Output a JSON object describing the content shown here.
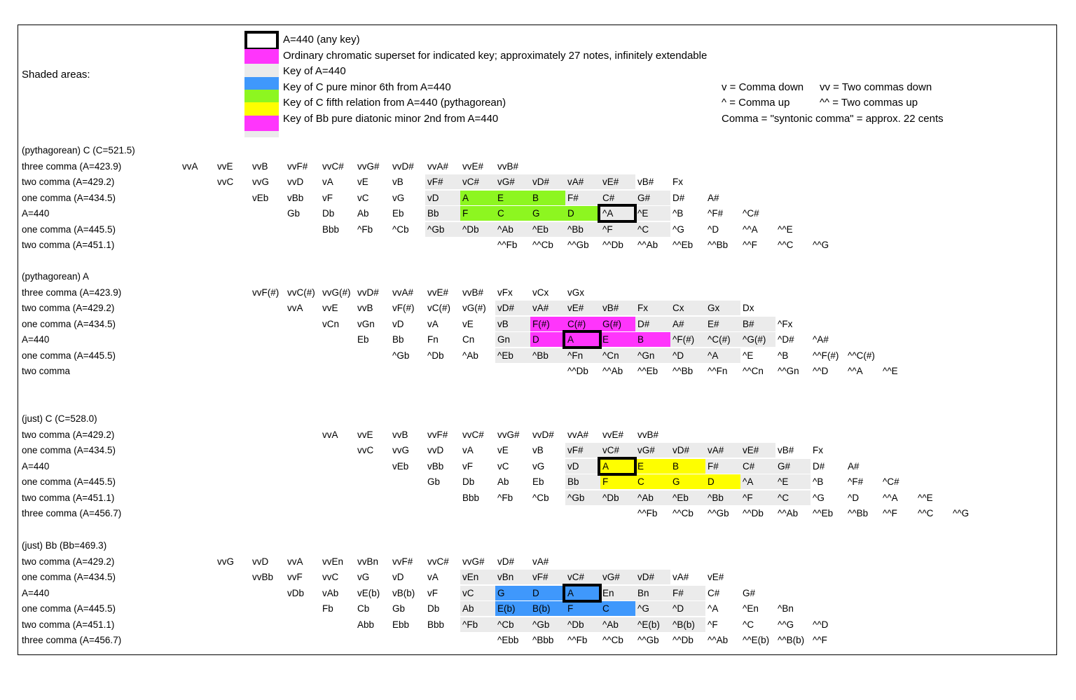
{
  "shaded_areas_label": "Shaded areas:",
  "hl_colors": {
    "g": "#ebebeb",
    "G": "#8df620",
    "M": "#ff35fc",
    "Y": "#fefe00",
    "B": "#3f98fc"
  },
  "legend": {
    "swatches": [
      {
        "name": "a440-any-key-swatch",
        "color": "#ffffff",
        "outlined": true
      },
      {
        "name": "chromatic-superset-swatch",
        "color": "#ff35fc"
      },
      {
        "name": "key-of-a440-swatch",
        "color": "#ebebeb"
      },
      {
        "name": "blue-key-swatch",
        "color": "#3f98fc"
      },
      {
        "name": "green-key-swatch",
        "color": "#8df620"
      },
      {
        "name": "yellow-key-swatch",
        "color": "#fefe00"
      },
      {
        "name": "magenta-key-swatch",
        "color": "#ff35fc"
      },
      {
        "name": "gray-tail-swatch",
        "color": "#ebebeb"
      }
    ],
    "lines": [
      "A=440 (any key)",
      "Ordinary chromatic superset for indicated key; approximately 27 notes, infinitely extendable",
      "Key of A=440",
      "Key of C pure minor 6th from A=440",
      "Key of C fifth relation from A=440 (pythagorean)",
      "Key of Bb pure diatonic minor 2nd from A=440"
    ],
    "notes": [
      {
        "left": "v = Comma down",
        "right": "vv = Two commas down"
      },
      {
        "left": "^ = Comma up",
        "right": "^^ = Two commas up"
      },
      {
        "left": "Comma = \"syntonic comma\" = approx. 22 cents",
        "right": ""
      }
    ]
  },
  "chart_data": {
    "type": "table",
    "description": "Comma-level pitch lattice; columns are fifth-chain positions, rows are syntonic comma offsets from A=440",
    "sections": [
      {
        "title": "(pythagorean) C (C=521.5)",
        "rows": [
          {
            "label": "three comma (A=423.9)",
            "start": 0,
            "cells": [
              "vvA",
              "vvE",
              "vvB",
              "vvF#",
              "vvC#",
              "vvG#",
              "vvD#",
              "vvA#",
              "vvE#",
              "vvB#"
            ]
          },
          {
            "label": "two comma (A=429.2)",
            "start": 1,
            "cells": [
              "vvC",
              "vvG",
              "vvD",
              "vA",
              "vE",
              "vB",
              [
                "vF#",
                "g"
              ],
              [
                "vC#",
                "g"
              ],
              [
                "vG#",
                "g"
              ],
              [
                "vD#",
                "g"
              ],
              [
                "vA#",
                "g"
              ],
              [
                "vE#",
                "g"
              ],
              "vB#",
              "Fx"
            ]
          },
          {
            "label": "one comma (A=434.5)",
            "start": 2,
            "cells": [
              "vEb",
              "vBb",
              "vF",
              "vC",
              "vG",
              [
                "vD",
                "g"
              ],
              [
                "A",
                "G"
              ],
              [
                "E",
                "G"
              ],
              [
                "B",
                "G"
              ],
              [
                "F#",
                "g"
              ],
              [
                "C#",
                "g"
              ],
              [
                "G#",
                "g"
              ],
              "D#",
              "A#"
            ]
          },
          {
            "label": "A=440",
            "start": 3,
            "cells": [
              "Gb",
              "Db",
              "Ab",
              "Eb",
              [
                "Bb",
                "g"
              ],
              [
                "F",
                "G"
              ],
              [
                "C",
                "G"
              ],
              [
                "G",
                "G"
              ],
              [
                "D",
                "G"
              ],
              [
                "^A",
                "g",
                1
              ],
              [
                "^E",
                "g"
              ],
              "^B",
              "^F#",
              "^C#"
            ]
          },
          {
            "label": "one comma (A=445.5)",
            "start": 4,
            "cells": [
              "Bbb",
              "^Fb",
              "^Cb",
              [
                "^Gb",
                "g"
              ],
              [
                "^Db",
                "g"
              ],
              [
                "^Ab",
                "g"
              ],
              [
                "^Eb",
                "g"
              ],
              [
                "^Bb",
                "g"
              ],
              [
                "^F",
                "g"
              ],
              [
                "^C",
                "g"
              ],
              "^G",
              "^D",
              "^^A",
              "^^E"
            ]
          },
          {
            "label": "two comma (A=451.1)",
            "start": 9,
            "cells": [
              "^^Fb",
              "^^Cb",
              "^^Gb",
              "^^Db",
              "^^Ab",
              "^^Eb",
              "^^Bb",
              "^^F",
              "^^C",
              "^^G"
            ]
          }
        ]
      },
      {
        "title": "(pythagorean) A",
        "rows": [
          {
            "label": "three comma (A=423.9)",
            "start": 2,
            "cells": [
              "vvF(#)",
              "vvC(#)",
              "vvG(#)",
              "vvD#",
              "vvA#",
              "vvE#",
              "vvB#",
              "vFx",
              "vCx",
              "vGx"
            ]
          },
          {
            "label": "two comma (A=429.2)",
            "start": 3,
            "cells": [
              "vvA",
              "vvE",
              "vvB",
              "vF(#)",
              "vC(#)",
              "vG(#)",
              [
                "vD#",
                "g"
              ],
              [
                "vA#",
                "g"
              ],
              [
                "vE#",
                "g"
              ],
              [
                "vB#",
                "g"
              ],
              [
                "Fx",
                "g"
              ],
              [
                "Cx",
                "g"
              ],
              [
                "Gx",
                "g"
              ],
              "Dx"
            ]
          },
          {
            "label": "one comma (A=434.5)",
            "start": 4,
            "cells": [
              "vCn",
              "vGn",
              "vD",
              "vA",
              "vE",
              [
                "vB",
                "g"
              ],
              [
                "F(#)",
                "M"
              ],
              [
                "C(#)",
                "M"
              ],
              [
                "G(#)",
                "M"
              ],
              [
                "D#",
                "g"
              ],
              [
                "A#",
                "g"
              ],
              [
                "E#",
                "g"
              ],
              [
                "B#",
                "g"
              ],
              "^Fx"
            ]
          },
          {
            "label": "A=440",
            "start": 5,
            "cells": [
              "Eb",
              "Bb",
              "Fn",
              "Cn",
              [
                "Gn",
                "g"
              ],
              [
                "D",
                "M"
              ],
              [
                "A",
                "M",
                1
              ],
              [
                "E",
                "M"
              ],
              [
                "B",
                "M"
              ],
              [
                "^F(#)",
                "g"
              ],
              [
                "^C(#)",
                "g"
              ],
              [
                "^G(#)",
                "g"
              ],
              "^D#",
              "^A#"
            ]
          },
          {
            "label": "one comma (A=445.5)",
            "start": 6,
            "cells": [
              "^Gb",
              "^Db",
              "^Ab",
              [
                "^Eb",
                "g"
              ],
              [
                "^Bb",
                "g"
              ],
              [
                "^Fn",
                "g"
              ],
              [
                "^Cn",
                "g"
              ],
              [
                "^Gn",
                "g"
              ],
              [
                "^D",
                "g"
              ],
              [
                "^A",
                "g"
              ],
              "^E",
              "^B",
              "^^F(#)",
              "^^C(#)"
            ]
          },
          {
            "label": "two comma",
            "start": 11,
            "cells": [
              "^^Db",
              "^^Ab",
              "^^Eb",
              "^^Bb",
              "^^Fn",
              "^^Cn",
              "^^Gn",
              "^^D",
              "^^A",
              "^^E"
            ]
          }
        ]
      },
      {
        "title": "(just) C (C=528.0)",
        "rows": [
          {
            "label": "two comma (A=429.2)",
            "start": 4,
            "cells": [
              "vvA",
              "vvE",
              "vvB",
              "vvF#",
              "vvC#",
              "vvG#",
              "vvD#",
              "vvA#",
              "vvE#",
              "vvB#"
            ]
          },
          {
            "label": "one comma (A=434.5)",
            "start": 5,
            "cells": [
              "vvC",
              "vvG",
              "vvD",
              "vA",
              "vE",
              "vB",
              [
                "vF#",
                "g"
              ],
              [
                "vC#",
                "g"
              ],
              [
                "vG#",
                "g"
              ],
              [
                "vD#",
                "g"
              ],
              [
                "vA#",
                "g"
              ],
              [
                "vE#",
                "g"
              ],
              "vB#",
              "Fx"
            ]
          },
          {
            "label": "A=440",
            "start": 6,
            "cells": [
              "vEb",
              "vBb",
              "vF",
              "vC",
              "vG",
              [
                "vD",
                "g"
              ],
              [
                "A",
                "Y",
                1
              ],
              [
                "E",
                "Y"
              ],
              [
                "B",
                "Y"
              ],
              [
                "F#",
                "g"
              ],
              [
                "C#",
                "g"
              ],
              [
                "G#",
                "g"
              ],
              "D#",
              "A#"
            ]
          },
          {
            "label": "one comma (A=445.5)",
            "start": 7,
            "cells": [
              "Gb",
              "Db",
              "Ab",
              "Eb",
              [
                "Bb",
                "g"
              ],
              [
                "F",
                "Y"
              ],
              [
                "C",
                "Y"
              ],
              [
                "G",
                "Y"
              ],
              [
                "D",
                "Y"
              ],
              [
                "^A",
                "g"
              ],
              [
                "^E",
                "g"
              ],
              "^B",
              "^F#",
              "^C#"
            ]
          },
          {
            "label": "two comma (A=451.1)",
            "start": 8,
            "cells": [
              "Bbb",
              "^Fb",
              "^Cb",
              [
                "^Gb",
                "g"
              ],
              [
                "^Db",
                "g"
              ],
              [
                "^Ab",
                "g"
              ],
              [
                "^Eb",
                "g"
              ],
              [
                "^Bb",
                "g"
              ],
              [
                "^F",
                "g"
              ],
              [
                "^C",
                "g"
              ],
              "^G",
              "^D",
              "^^A",
              "^^E"
            ]
          },
          {
            "label": "three comma (A=456.7)",
            "start": 13,
            "cells": [
              "^^Fb",
              "^^Cb",
              "^^Gb",
              "^^Db",
              "^^Ab",
              "^^Eb",
              "^^Bb",
              "^^F",
              "^^C",
              "^^G"
            ]
          }
        ]
      },
      {
        "title": "(just) Bb (Bb=469.3)",
        "rows": [
          {
            "label": "two comma (A=429.2)",
            "start": 1,
            "cells": [
              "vvG",
              "vvD",
              "vvA",
              "vvEn",
              "vvBn",
              "vvF#",
              "vvC#",
              "vvG#",
              "vD#",
              "vA#"
            ]
          },
          {
            "label": "one comma (A=434.5)",
            "start": 2,
            "cells": [
              "vvBb",
              "vvF",
              "vvC",
              "vG",
              "vD",
              "vA",
              [
                "vEn",
                "g"
              ],
              [
                "vBn",
                "g"
              ],
              [
                "vF#",
                "g"
              ],
              [
                "vC#",
                "g"
              ],
              [
                "vG#",
                "g"
              ],
              [
                "vD#",
                "g"
              ],
              "vA#",
              "vE#"
            ]
          },
          {
            "label": "A=440",
            "start": 3,
            "cells": [
              "vDb",
              "vAb",
              "vE(b)",
              "vB(b)",
              "vF",
              [
                "vC",
                "g"
              ],
              [
                "G",
                "B"
              ],
              [
                "D",
                "B"
              ],
              [
                "A",
                "B",
                1
              ],
              [
                "En",
                "g"
              ],
              [
                "Bn",
                "g"
              ],
              [
                "F#",
                "g"
              ],
              "C#",
              "G#"
            ]
          },
          {
            "label": "one comma (A=445.5)",
            "start": 4,
            "cells": [
              "Fb",
              "Cb",
              "Gb",
              "Db",
              [
                "Ab",
                "g"
              ],
              [
                "E(b)",
                "B"
              ],
              [
                "B(b)",
                "B"
              ],
              [
                "F",
                "B"
              ],
              [
                "C",
                "B"
              ],
              [
                "^G",
                "g"
              ],
              [
                "^D",
                "g"
              ],
              "^A",
              "^En",
              "^Bn"
            ]
          },
          {
            "label": "two comma (A=451.1)",
            "start": 5,
            "cells": [
              "Abb",
              "Ebb",
              "Bbb",
              [
                "^Fb",
                "g"
              ],
              [
                "^Cb",
                "g"
              ],
              [
                "^Gb",
                "g"
              ],
              [
                "^Db",
                "g"
              ],
              [
                "^Ab",
                "g"
              ],
              [
                "^E(b)",
                "g"
              ],
              [
                "^B(b)",
                "g"
              ],
              "^F",
              "^C",
              "^^G",
              "^^D"
            ]
          },
          {
            "label": "three comma (A=456.7)",
            "start": 9,
            "cells": [
              "^Ebb",
              "^Bbb",
              "^^Fb",
              "^^Cb",
              "^^Gb",
              "^^Db",
              "^^Ab",
              "^^E(b)",
              "^^B(b)",
              "^^F"
            ]
          }
        ]
      }
    ]
  }
}
